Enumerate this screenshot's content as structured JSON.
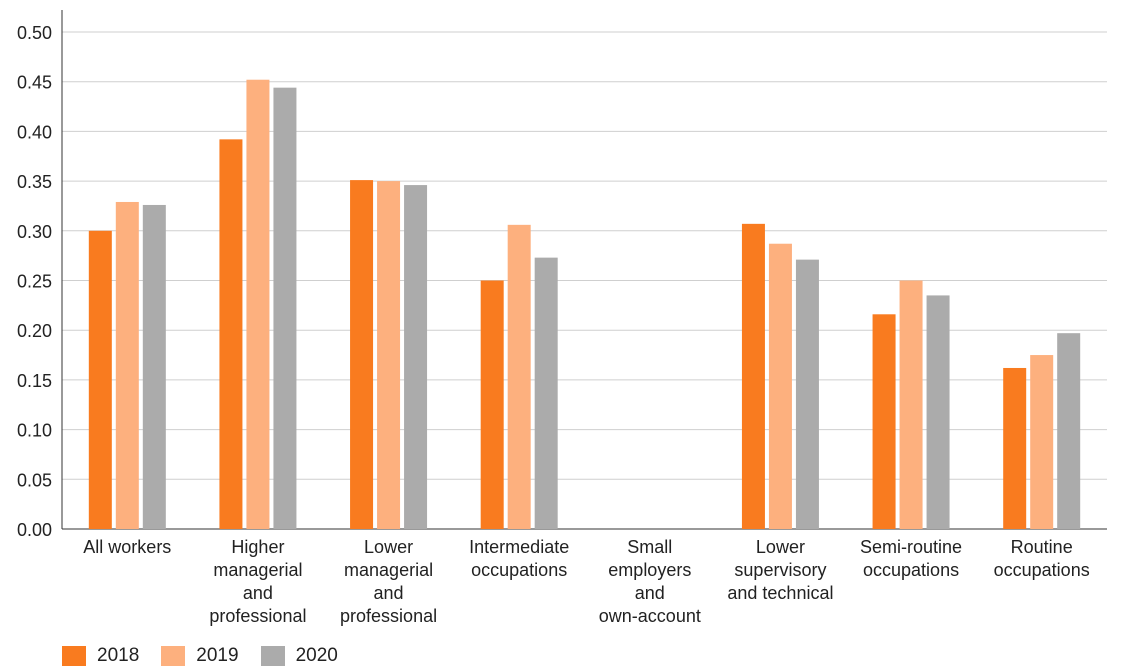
{
  "chart_data": {
    "type": "bar",
    "title": "",
    "xlabel": "",
    "ylabel": "",
    "ylim": [
      0,
      0.5
    ],
    "yticks": [
      "0.00",
      "0.05",
      "0.10",
      "0.15",
      "0.20",
      "0.25",
      "0.30",
      "0.35",
      "0.40",
      "0.45",
      "0.50"
    ],
    "grid": true,
    "legend_position": "bottom-left",
    "categories": [
      [
        "All workers"
      ],
      [
        "Higher",
        "managerial",
        "and",
        "professional"
      ],
      [
        "Lower",
        "managerial",
        "and",
        "professional"
      ],
      [
        "Intermediate",
        "occupations"
      ],
      [
        "Small",
        "employers",
        "and",
        "own-account"
      ],
      [
        "Lower",
        "supervisory",
        "and technical"
      ],
      [
        "Semi-routine",
        "occupations"
      ],
      [
        "Routine",
        "occupations"
      ]
    ],
    "series": [
      {
        "name": "2018",
        "color": "#f97b1f",
        "values": [
          0.3,
          0.392,
          0.351,
          0.25,
          null,
          0.307,
          0.216,
          0.162
        ]
      },
      {
        "name": "2019",
        "color": "#fdb07e",
        "values": [
          0.329,
          0.452,
          0.35,
          0.306,
          null,
          0.287,
          0.25,
          0.175
        ]
      },
      {
        "name": "2020",
        "color": "#ababab",
        "values": [
          0.326,
          0.444,
          0.346,
          0.273,
          null,
          0.271,
          0.235,
          0.197
        ]
      }
    ]
  }
}
